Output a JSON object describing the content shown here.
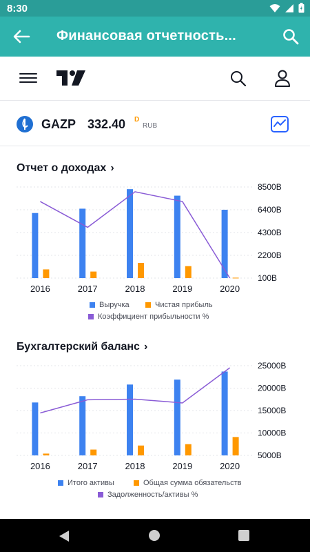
{
  "status": {
    "time": "8:30"
  },
  "app_bar": {
    "title": "Финансовая отчетность..."
  },
  "symbol": {
    "ticker": "GAZP",
    "price": "332.40",
    "delay_badge": "D",
    "currency": "RUB"
  },
  "colors": {
    "bar_primary": "#3d82f0",
    "bar_secondary": "#ff9800",
    "line": "#8a5cd6",
    "teal": "#2fb3ad"
  },
  "sections": [
    {
      "title": "Отчет о доходах"
    },
    {
      "title": "Бухгалтерский баланс"
    }
  ],
  "chart_data": [
    {
      "type": "bar",
      "title": "Отчет о доходах",
      "categories": [
        "2016",
        "2017",
        "2018",
        "2019",
        "2020"
      ],
      "ylim": [
        100,
        8500
      ],
      "y_ticks": [
        "8500B",
        "6400B",
        "4300B",
        "2200B",
        "100B"
      ],
      "series": [
        {
          "name": "Выручка",
          "kind": "bar",
          "values": [
            6100,
            6500,
            8300,
            7700,
            6400
          ]
        },
        {
          "name": "Чистая прибыль",
          "kind": "bar",
          "values": [
            900,
            700,
            1500,
            1200,
            135
          ]
        },
        {
          "name": "Коэффициент прибыльности %",
          "kind": "line",
          "relative_level": [
            0.86,
            0.57,
            0.97,
            0.86,
            0.0
          ]
        }
      ],
      "legend": [
        "Выручка",
        "Чистая прибыль",
        "Коэффициент прибыльности %"
      ],
      "legend_position": "bottom"
    },
    {
      "type": "bar",
      "title": "Бухгалтерский баланс",
      "categories": [
        "2016",
        "2017",
        "2018",
        "2019",
        "2020"
      ],
      "ylim": [
        5000,
        25000
      ],
      "y_ticks": [
        "25000B",
        "20000B",
        "15000B",
        "10000B",
        "5000B"
      ],
      "series": [
        {
          "name": "Итого активы",
          "kind": "bar",
          "values": [
            16800,
            18200,
            20800,
            21900,
            23700
          ]
        },
        {
          "name": "Общая сумма обязательств",
          "kind": "bar",
          "values": [
            5400,
            6300,
            7200,
            7500,
            9100
          ]
        },
        {
          "name": "Задолженность/активы %",
          "kind": "line",
          "relative_level": [
            0.28,
            0.49,
            0.5,
            0.44,
            1.0
          ]
        }
      ],
      "legend": [
        "Итого активы",
        "Общая сумма обязательств",
        "Задолженность/активы %"
      ],
      "legend_position": "bottom"
    }
  ]
}
